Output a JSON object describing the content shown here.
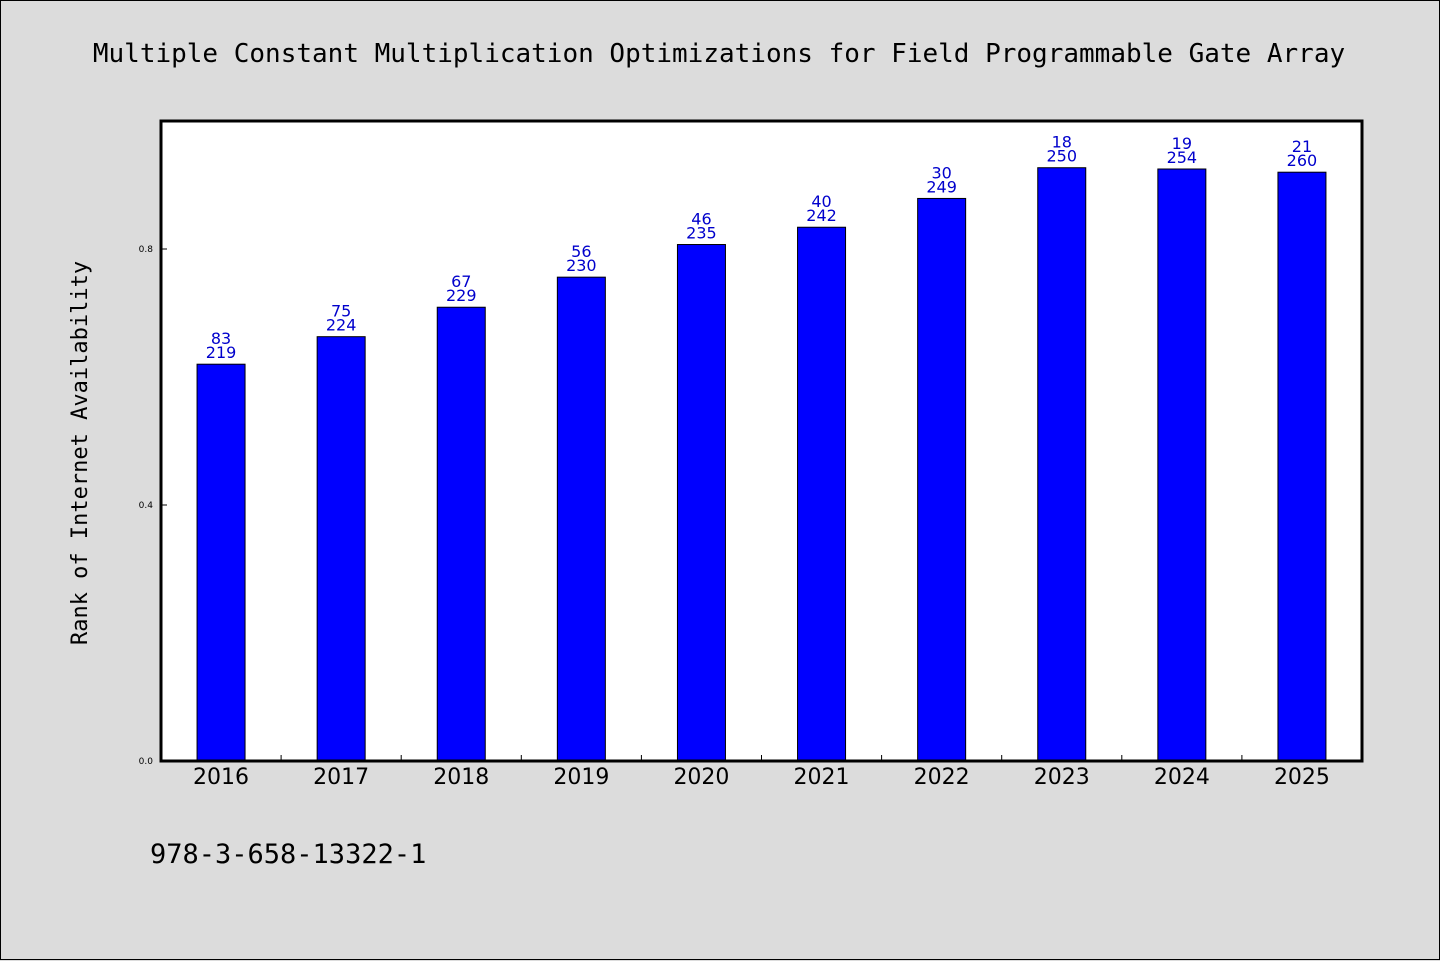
{
  "chart_data": {
    "type": "bar",
    "title": "Multiple Constant Multiplication Optimizations for Field Programmable Gate Array",
    "xlabel": "",
    "ylabel": "Rank of Internet Availability",
    "categories": [
      "2016",
      "2017",
      "2018",
      "2019",
      "2020",
      "2021",
      "2022",
      "2023",
      "2024",
      "2025"
    ],
    "series": [
      {
        "values": [
          0.62,
          0.663,
          0.709,
          0.756,
          0.807,
          0.834,
          0.879,
          0.927,
          0.925,
          0.92
        ],
        "color": "#0000ff",
        "labels_top": [
          "83",
          "75",
          "67",
          "56",
          "46",
          "40",
          "30",
          "18",
          "19",
          "21"
        ],
        "labels_bottom": [
          "219",
          "224",
          "229",
          "230",
          "235",
          "242",
          "249",
          "250",
          "254",
          "260"
        ]
      }
    ],
    "ylim": [
      0,
      1.0
    ],
    "yticks": [
      "0.0",
      "0.4",
      "0.8"
    ],
    "ytick_values": [
      0.0,
      0.4,
      0.8
    ],
    "grid": false,
    "legend": "none",
    "footnote": "978-3-658-13322-1",
    "label_color": "#0000cc",
    "background": "#dcdcdc",
    "plot_background": "#ffffff"
  }
}
